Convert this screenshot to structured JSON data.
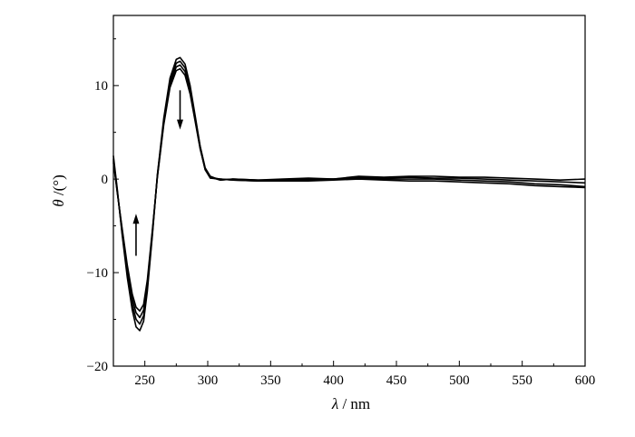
{
  "chart_data": {
    "type": "line",
    "title": "",
    "xlabel_symbol": "λ",
    "xlabel_unit": "/ nm",
    "ylabel_symbol": "θ",
    "ylabel_unit": "/(°)",
    "xlim": [
      225,
      600
    ],
    "ylim": [
      -20,
      17.5
    ],
    "xticks": [
      250,
      300,
      350,
      400,
      450,
      500,
      550,
      600
    ],
    "yticks": [
      -20,
      -10,
      0,
      10
    ],
    "ytick_labels": [
      "−20",
      "−10",
      "0",
      "10"
    ],
    "grid": false,
    "legend": "none",
    "line_color": "#000000",
    "annotations": [
      {
        "type": "arrow",
        "direction": "down",
        "x": 278,
        "y_from": 9.5,
        "y_to": 5.3
      },
      {
        "type": "arrow",
        "direction": "up",
        "x": 243,
        "y_from": -8.2,
        "y_to": -3.7
      }
    ],
    "series": [
      {
        "x": [
          225,
          228,
          232,
          236,
          240,
          243,
          246,
          249,
          252,
          256,
          260,
          265,
          270,
          275,
          278,
          282,
          286,
          290,
          294,
          298,
          302,
          310,
          320,
          340,
          360,
          380,
          400,
          420,
          440,
          460,
          480,
          500,
          520,
          540,
          560,
          580,
          600
        ],
        "y": [
          2.5,
          -1.0,
          -6.0,
          -10.5,
          -14.0,
          -15.8,
          -16.2,
          -15.2,
          -12.0,
          -6.0,
          0.5,
          6.5,
          10.8,
          12.8,
          13.0,
          12.3,
          10.0,
          6.8,
          3.5,
          1.2,
          0.3,
          -0.1,
          0.0,
          -0.1,
          0.0,
          0.1,
          0.0,
          0.3,
          0.2,
          0.3,
          0.3,
          0.2,
          0.2,
          0.1,
          0.0,
          -0.1,
          0.0
        ]
      },
      {
        "x": [
          225,
          228,
          232,
          236,
          240,
          243,
          246,
          249,
          252,
          256,
          260,
          265,
          270,
          275,
          278,
          282,
          286,
          290,
          294,
          298,
          302,
          310,
          320,
          340,
          360,
          380,
          400,
          420,
          440,
          460,
          480,
          500,
          520,
          540,
          560,
          580,
          600
        ],
        "y": [
          2.2,
          -1.2,
          -5.8,
          -10.0,
          -13.4,
          -15.0,
          -15.5,
          -14.6,
          -11.6,
          -5.8,
          0.4,
          6.2,
          10.4,
          12.4,
          12.6,
          11.9,
          9.7,
          6.6,
          3.4,
          1.1,
          0.2,
          -0.1,
          0.0,
          -0.1,
          -0.1,
          0.0,
          0.0,
          0.2,
          0.1,
          0.2,
          0.1,
          0.1,
          0.0,
          -0.1,
          -0.2,
          -0.3,
          -0.4
        ]
      },
      {
        "x": [
          225,
          228,
          232,
          236,
          240,
          243,
          246,
          249,
          252,
          256,
          260,
          265,
          270,
          275,
          278,
          282,
          286,
          290,
          294,
          298,
          302,
          310,
          320,
          340,
          360,
          380,
          400,
          420,
          440,
          460,
          480,
          500,
          520,
          540,
          560,
          580,
          600
        ],
        "y": [
          2.0,
          -1.3,
          -5.5,
          -9.6,
          -12.8,
          -14.3,
          -14.8,
          -14.0,
          -11.2,
          -5.6,
          0.3,
          6.0,
          10.1,
          12.0,
          12.2,
          11.5,
          9.4,
          6.4,
          3.3,
          1.0,
          0.2,
          0.0,
          -0.1,
          -0.2,
          -0.1,
          -0.1,
          0.0,
          0.1,
          0.0,
          0.0,
          0.0,
          -0.1,
          -0.2,
          -0.3,
          -0.5,
          -0.6,
          -0.8
        ]
      },
      {
        "x": [
          225,
          228,
          232,
          236,
          240,
          243,
          246,
          249,
          252,
          256,
          260,
          265,
          270,
          275,
          278,
          282,
          286,
          290,
          294,
          298,
          302,
          310,
          320,
          340,
          360,
          380,
          400,
          420,
          440,
          460,
          480,
          500,
          520,
          540,
          560,
          580,
          600
        ],
        "y": [
          1.8,
          -1.4,
          -5.3,
          -9.2,
          -12.3,
          -13.7,
          -14.1,
          -13.4,
          -10.8,
          -5.4,
          0.2,
          5.8,
          9.8,
          11.6,
          11.8,
          11.1,
          9.1,
          6.2,
          3.2,
          1.0,
          0.1,
          0.0,
          -0.1,
          -0.2,
          -0.2,
          -0.2,
          -0.1,
          0.0,
          -0.1,
          -0.2,
          -0.2,
          -0.3,
          -0.4,
          -0.5,
          -0.7,
          -0.8,
          -0.9
        ]
      }
    ]
  }
}
